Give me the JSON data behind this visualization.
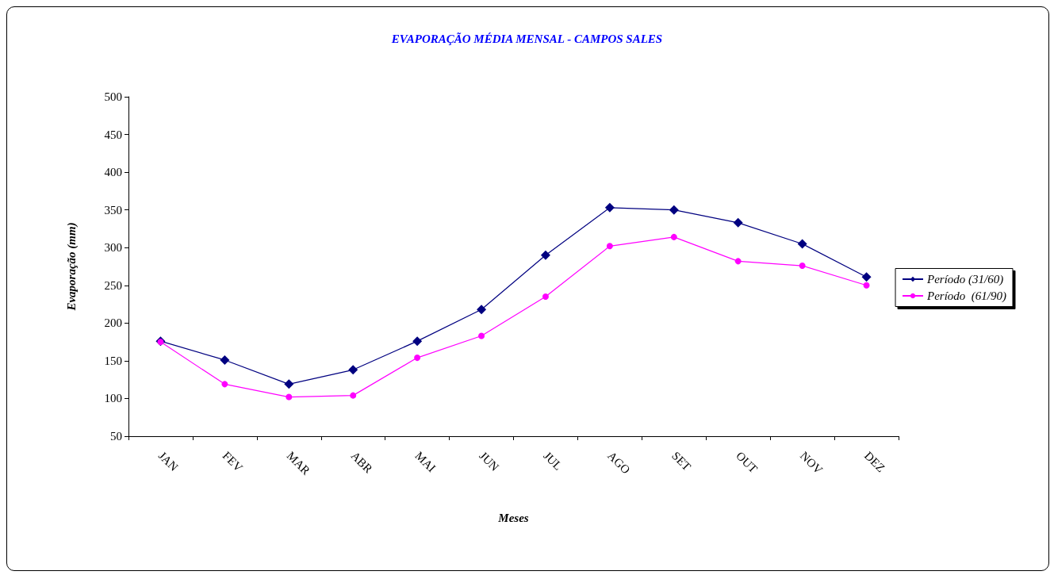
{
  "chart_data": {
    "type": "line",
    "title": "EVAPORAÇÃO MÉDIA MENSAL - CAMPOS SALES",
    "xlabel": "Meses",
    "ylabel": "Evaporação (mm)",
    "categories": [
      "JAN",
      "FEV",
      "MAR",
      "ABR",
      "MAI",
      "JUN",
      "JUL",
      "AGO",
      "SET",
      "OUT",
      "NOV",
      "DEZ"
    ],
    "series": [
      {
        "name": "Período (31/60)",
        "color": "#000080",
        "marker": "diamond",
        "values": [
          176,
          151,
          119,
          138,
          176,
          218,
          290,
          353,
          350,
          333,
          305,
          261
        ]
      },
      {
        "name": "Período  (61/90)",
        "color": "#ff00ff",
        "marker": "circle",
        "values": [
          175,
          119,
          102,
          104,
          154,
          183,
          235,
          302,
          314,
          282,
          276,
          250
        ]
      }
    ],
    "ylim": [
      50,
      500
    ],
    "yticks": [
      50,
      100,
      150,
      200,
      250,
      300,
      350,
      400,
      450,
      500
    ],
    "grid": false,
    "legend": "right"
  }
}
